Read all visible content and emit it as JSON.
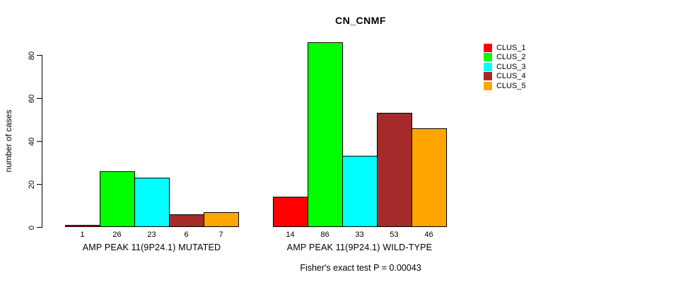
{
  "chart_data": {
    "type": "bar",
    "title": "CN_CNMF",
    "ylabel": "number of cases",
    "ylim": [
      0,
      86
    ],
    "yticks": [
      0,
      20,
      40,
      60,
      80
    ],
    "grid": false,
    "legend_position": "top-right",
    "series": [
      "CLUS_1",
      "CLUS_2",
      "CLUS_3",
      "CLUS_4",
      "CLUS_5"
    ],
    "colors": [
      "#FF0000",
      "#00FF00",
      "#00FFFF",
      "#A52A2A",
      "#FFA500"
    ],
    "groups": [
      {
        "label": "AMP PEAK 11(9P24.1) MUTATED",
        "values": [
          1,
          26,
          23,
          6,
          7
        ]
      },
      {
        "label": "AMP PEAK 11(9P24.1) WILD-TYPE",
        "values": [
          14,
          86,
          33,
          53,
          46
        ]
      }
    ],
    "footnote": "Fisher's exact test P = 0.00043"
  }
}
